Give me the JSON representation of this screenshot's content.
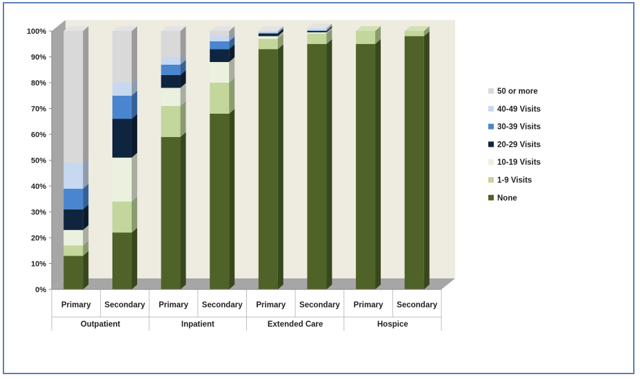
{
  "chart_data": {
    "type": "bar",
    "stacked": true,
    "three_d": true,
    "title": "",
    "xlabel": "",
    "ylabel": "",
    "ylim": [
      0,
      100
    ],
    "y_ticks": [
      "0%",
      "10%",
      "20%",
      "30%",
      "40%",
      "50%",
      "60%",
      "70%",
      "80%",
      "90%",
      "100%"
    ],
    "groups": [
      "Outpatient",
      "Inpatient",
      "Extended Care",
      "Hospice"
    ],
    "categories": [
      "Primary",
      "Secondary",
      "Primary",
      "Secondary",
      "Primary",
      "Secondary",
      "Primary",
      "Secondary"
    ],
    "legend_position": "right",
    "series": [
      {
        "name": "None",
        "color": "#4f6228",
        "values": [
          13,
          22,
          59,
          68,
          93,
          95,
          95,
          98
        ]
      },
      {
        "name": "1-9 Visits",
        "color": "#c3d69b",
        "values": [
          4,
          12,
          12,
          12,
          4,
          4,
          5,
          2
        ]
      },
      {
        "name": "10-19 Visits",
        "color": "#ebf1de",
        "values": [
          6,
          17,
          7,
          8,
          1,
          0.5,
          0,
          0
        ]
      },
      {
        "name": "20-29 Visits",
        "color": "#0f243e",
        "values": [
          8,
          15,
          5,
          5,
          1,
          0.5,
          0,
          0
        ]
      },
      {
        "name": "30-39 Visits",
        "color": "#4a86d0",
        "values": [
          8,
          9,
          4,
          3,
          0.3,
          0.2,
          0,
          0
        ]
      },
      {
        "name": "40-49 Visits",
        "color": "#c6d9f1",
        "values": [
          10,
          5,
          3,
          2,
          0.3,
          0.2,
          0,
          0
        ]
      },
      {
        "name": "50 or more",
        "color": "#d9d9d9",
        "values": [
          51,
          20,
          10,
          2,
          0.4,
          0.6,
          0,
          0
        ]
      }
    ]
  }
}
